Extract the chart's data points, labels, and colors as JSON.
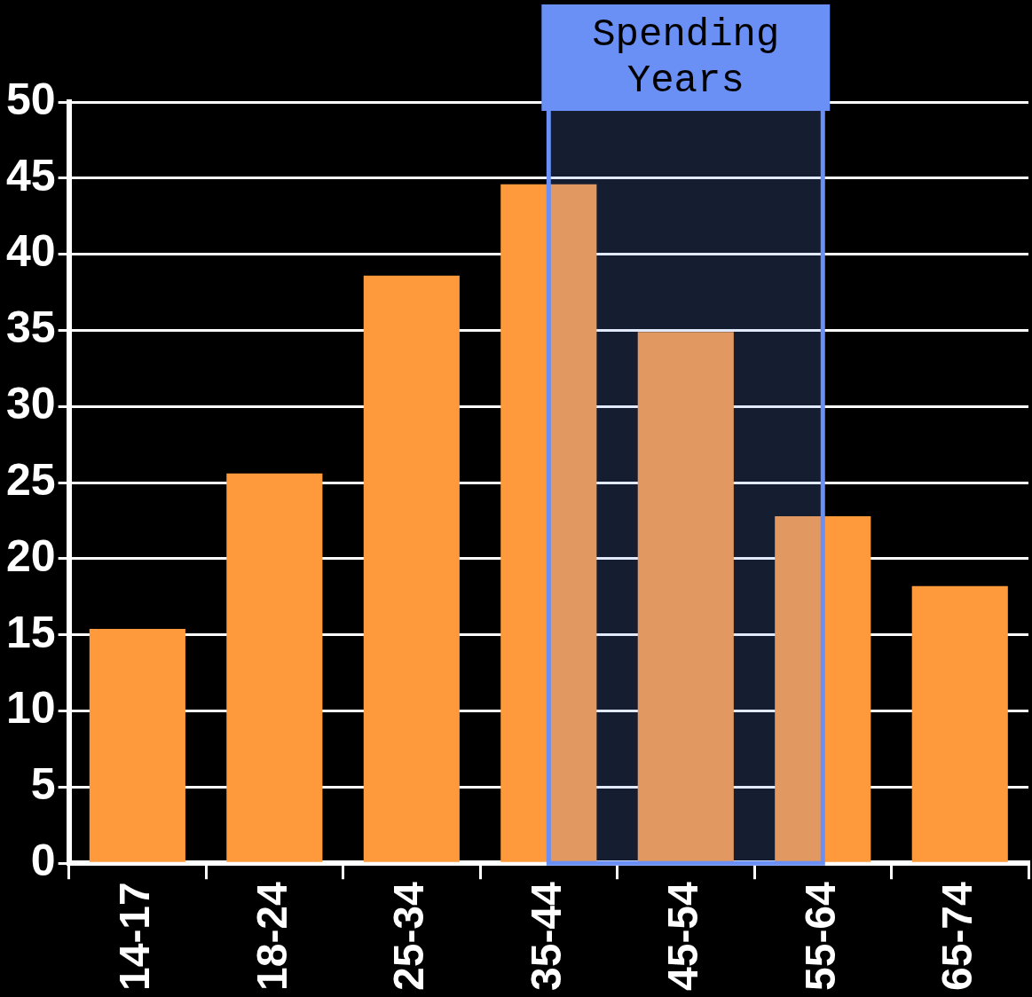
{
  "chart_data": {
    "type": "bar",
    "categories": [
      "14-17",
      "18-24",
      "25-34",
      "35-44",
      "45-54",
      "55-64",
      "65-74"
    ],
    "values": [
      15.4,
      25.6,
      38.6,
      44.6,
      34.9,
      22.8,
      18.2
    ],
    "color": "#ff9a3c",
    "ylim": [
      0,
      50
    ],
    "yticks": [
      0,
      5,
      10,
      15,
      20,
      25,
      30,
      35,
      40,
      45,
      50
    ],
    "grid": "y",
    "legend": false,
    "bands": [
      {
        "axis": "x",
        "from": "35-44",
        "to": "55-64",
        "label": "Spending Years",
        "color": "#6a8ff5"
      }
    ]
  }
}
